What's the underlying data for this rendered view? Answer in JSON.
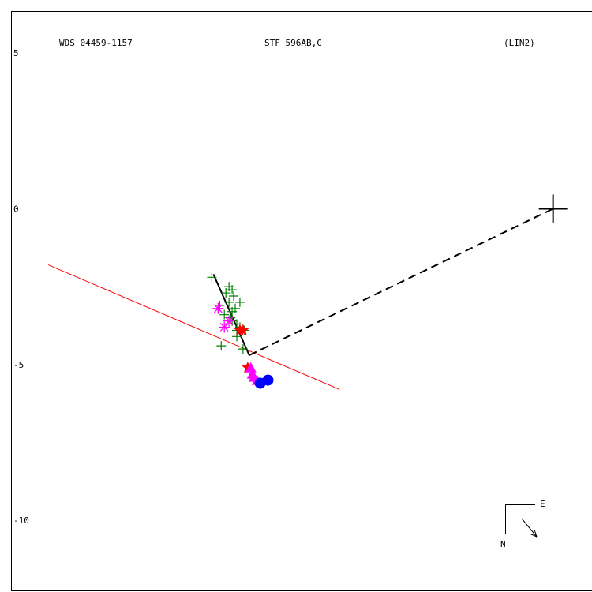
{
  "chart_data": {
    "type": "scatter",
    "header": {
      "left": "WDS 04459-1157",
      "center": "STF 596AB,C",
      "right": "(LIN2)"
    },
    "y_ticks": [
      5,
      0,
      -5,
      -10
    ],
    "xlim": [
      -18.0,
      20.0
    ],
    "ylim": [
      -12.3,
      6.7
    ],
    "primary": {
      "x": 17.5,
      "y": 0
    },
    "fit_line": {
      "from": [
        -2,
        -4.7
      ],
      "to": [
        -4.3,
        -2.1
      ],
      "color": "#000000"
    },
    "linear_solution": {
      "from": [
        -14.9,
        -1.8
      ],
      "to": [
        3.8,
        -5.8
      ],
      "color": "#ff0000"
    },
    "dashed_link": {
      "from": [
        -2,
        -4.7
      ],
      "to": [
        17.5,
        0
      ],
      "color": "#000000"
    },
    "series": [
      {
        "marker": "plus",
        "color": "#008000",
        "points": [
          [
            -4.4,
            -2.2
          ],
          [
            -3.3,
            -2.5
          ],
          [
            -3.1,
            -2.6
          ],
          [
            -3.5,
            -2.7
          ],
          [
            -3.0,
            -2.8
          ],
          [
            -3.3,
            -3.0
          ],
          [
            -2.6,
            -3.0
          ],
          [
            -3.9,
            -3.1
          ],
          [
            -2.9,
            -3.2
          ],
          [
            -3.1,
            -3.3
          ],
          [
            -3.6,
            -3.4
          ],
          [
            -3.2,
            -3.5
          ],
          [
            -3.1,
            -3.6
          ],
          [
            -2.8,
            -3.7
          ],
          [
            -2.6,
            -3.8
          ],
          [
            -2.8,
            -3.9
          ],
          [
            -2.3,
            -3.9
          ],
          [
            -2.8,
            -4.1
          ],
          [
            -3.8,
            -4.4
          ],
          [
            -2.4,
            -4.5
          ]
        ]
      },
      {
        "marker": "asterisk",
        "color": "#ff00ff",
        "points": [
          [
            -4.0,
            -3.2
          ],
          [
            -3.6,
            -3.8
          ],
          [
            -3.3,
            -3.6
          ]
        ]
      },
      {
        "marker": "star",
        "color": "#ff0000",
        "points": [
          [
            -2.6,
            -3.9
          ],
          [
            -2.4,
            -3.9
          ],
          [
            -2.1,
            -5.1
          ]
        ]
      },
      {
        "marker": "triangle",
        "color": "#ff00ff",
        "points": [
          [
            -1.9,
            -5.1
          ],
          [
            -1.8,
            -5.3
          ],
          [
            -1.7,
            -5.4
          ],
          [
            -1.5,
            -5.5
          ]
        ]
      },
      {
        "marker": "circle",
        "color": "#0000ff",
        "points": [
          [
            -1.3,
            -5.6
          ],
          [
            -0.8,
            -5.5
          ]
        ]
      }
    ],
    "compass": {
      "north_label": "N",
      "east_label": "E"
    },
    "grid": false,
    "legend": "none"
  }
}
